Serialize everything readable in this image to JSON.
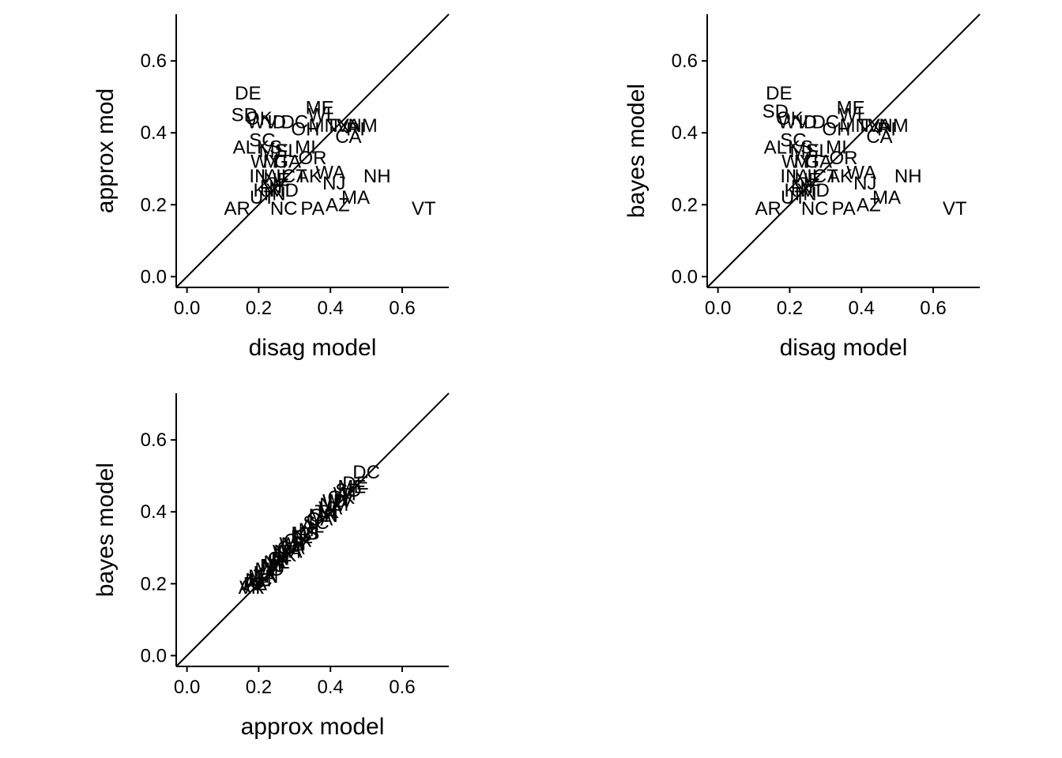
{
  "chart_data": [
    {
      "type": "scatter",
      "xlabel": "disag model",
      "ylabel": "approx mod",
      "xlim": [
        -0.03,
        0.73
      ],
      "ylim": [
        -0.03,
        0.73
      ],
      "xticks": [
        "0.0",
        "0.2",
        "0.4",
        "0.6"
      ],
      "yticks": [
        "0.0",
        "0.2",
        "0.4",
        "0.6"
      ],
      "reference_line": "y = x",
      "points": [
        {
          "label": "DE",
          "x": 0.17,
          "y": 0.51
        },
        {
          "label": "SD",
          "x": 0.16,
          "y": 0.45
        },
        {
          "label": "OK",
          "x": 0.2,
          "y": 0.44
        },
        {
          "label": "WV",
          "x": 0.21,
          "y": 0.43
        },
        {
          "label": "ID",
          "x": 0.25,
          "y": 0.43
        },
        {
          "label": "DC",
          "x": 0.3,
          "y": 0.43
        },
        {
          "label": "ME",
          "x": 0.37,
          "y": 0.47
        },
        {
          "label": "WI",
          "x": 0.37,
          "y": 0.45
        },
        {
          "label": "OH",
          "x": 0.33,
          "y": 0.41
        },
        {
          "label": "MN",
          "x": 0.38,
          "y": 0.42
        },
        {
          "label": "TX",
          "x": 0.42,
          "y": 0.42
        },
        {
          "label": "VA",
          "x": 0.45,
          "y": 0.42
        },
        {
          "label": "NM",
          "x": 0.49,
          "y": 0.42
        },
        {
          "label": "RI",
          "x": 0.47,
          "y": 0.41
        },
        {
          "label": "CA",
          "x": 0.45,
          "y": 0.39
        },
        {
          "label": "AL",
          "x": 0.16,
          "y": 0.36
        },
        {
          "label": "SC",
          "x": 0.21,
          "y": 0.38
        },
        {
          "label": "KS",
          "x": 0.23,
          "y": 0.36
        },
        {
          "label": "MS",
          "x": 0.24,
          "y": 0.35
        },
        {
          "label": "FL",
          "x": 0.28,
          "y": 0.35
        },
        {
          "label": "MI",
          "x": 0.33,
          "y": 0.36
        },
        {
          "label": "WY",
          "x": 0.22,
          "y": 0.32
        },
        {
          "label": "MT",
          "x": 0.25,
          "y": 0.32
        },
        {
          "label": "GA",
          "x": 0.28,
          "y": 0.32
        },
        {
          "label": "OR",
          "x": 0.35,
          "y": 0.33
        },
        {
          "label": "WA",
          "x": 0.4,
          "y": 0.29
        },
        {
          "label": "NH",
          "x": 0.53,
          "y": 0.28
        },
        {
          "label": "NJ",
          "x": 0.41,
          "y": 0.26
        },
        {
          "label": "IN",
          "x": 0.2,
          "y": 0.28
        },
        {
          "label": "IA",
          "x": 0.23,
          "y": 0.28
        },
        {
          "label": "NE",
          "x": 0.25,
          "y": 0.27
        },
        {
          "label": "IL",
          "x": 0.27,
          "y": 0.28
        },
        {
          "label": "CT",
          "x": 0.3,
          "y": 0.28
        },
        {
          "label": "AK",
          "x": 0.34,
          "y": 0.28
        },
        {
          "label": "NY",
          "x": 0.24,
          "y": 0.25
        },
        {
          "label": "KY",
          "x": 0.22,
          "y": 0.24
        },
        {
          "label": "MD",
          "x": 0.27,
          "y": 0.24
        },
        {
          "label": "TN",
          "x": 0.24,
          "y": 0.23
        },
        {
          "label": "UT",
          "x": 0.21,
          "y": 0.22
        },
        {
          "label": "NC",
          "x": 0.27,
          "y": 0.19
        },
        {
          "label": "PA",
          "x": 0.35,
          "y": 0.19
        },
        {
          "label": "AZ",
          "x": 0.42,
          "y": 0.2
        },
        {
          "label": "MA",
          "x": 0.47,
          "y": 0.22
        },
        {
          "label": "AR",
          "x": 0.14,
          "y": 0.19
        },
        {
          "label": "VT",
          "x": 0.66,
          "y": 0.19
        }
      ]
    },
    {
      "type": "scatter",
      "xlabel": "disag model",
      "ylabel": "bayes model",
      "xlim": [
        -0.03,
        0.73
      ],
      "ylim": [
        -0.03,
        0.73
      ],
      "xticks": [
        "0.0",
        "0.2",
        "0.4",
        "0.6"
      ],
      "yticks": [
        "0.0",
        "0.2",
        "0.4",
        "0.6"
      ],
      "reference_line": "y = x",
      "points": [
        {
          "label": "DE",
          "x": 0.17,
          "y": 0.51
        },
        {
          "label": "SD",
          "x": 0.16,
          "y": 0.46
        },
        {
          "label": "OK",
          "x": 0.2,
          "y": 0.44
        },
        {
          "label": "WV",
          "x": 0.21,
          "y": 0.43
        },
        {
          "label": "ID",
          "x": 0.25,
          "y": 0.43
        },
        {
          "label": "DC",
          "x": 0.3,
          "y": 0.43
        },
        {
          "label": "ME",
          "x": 0.37,
          "y": 0.47
        },
        {
          "label": "WI",
          "x": 0.37,
          "y": 0.45
        },
        {
          "label": "OH",
          "x": 0.33,
          "y": 0.41
        },
        {
          "label": "MN",
          "x": 0.38,
          "y": 0.42
        },
        {
          "label": "TX",
          "x": 0.42,
          "y": 0.42
        },
        {
          "label": "VA",
          "x": 0.45,
          "y": 0.42
        },
        {
          "label": "NM",
          "x": 0.49,
          "y": 0.42
        },
        {
          "label": "RI",
          "x": 0.47,
          "y": 0.41
        },
        {
          "label": "CA",
          "x": 0.45,
          "y": 0.39
        },
        {
          "label": "AL",
          "x": 0.16,
          "y": 0.36
        },
        {
          "label": "SC",
          "x": 0.21,
          "y": 0.38
        },
        {
          "label": "KS",
          "x": 0.23,
          "y": 0.36
        },
        {
          "label": "MS",
          "x": 0.24,
          "y": 0.35
        },
        {
          "label": "FL",
          "x": 0.28,
          "y": 0.35
        },
        {
          "label": "MI",
          "x": 0.33,
          "y": 0.36
        },
        {
          "label": "WY",
          "x": 0.22,
          "y": 0.32
        },
        {
          "label": "MT",
          "x": 0.25,
          "y": 0.32
        },
        {
          "label": "GA",
          "x": 0.28,
          "y": 0.32
        },
        {
          "label": "OR",
          "x": 0.35,
          "y": 0.33
        },
        {
          "label": "WA",
          "x": 0.4,
          "y": 0.29
        },
        {
          "label": "NH",
          "x": 0.53,
          "y": 0.28
        },
        {
          "label": "NJ",
          "x": 0.41,
          "y": 0.26
        },
        {
          "label": "IN",
          "x": 0.2,
          "y": 0.28
        },
        {
          "label": "IA",
          "x": 0.23,
          "y": 0.28
        },
        {
          "label": "NE",
          "x": 0.25,
          "y": 0.27
        },
        {
          "label": "IL",
          "x": 0.27,
          "y": 0.28
        },
        {
          "label": "CT",
          "x": 0.3,
          "y": 0.28
        },
        {
          "label": "AK",
          "x": 0.34,
          "y": 0.28
        },
        {
          "label": "NY",
          "x": 0.24,
          "y": 0.25
        },
        {
          "label": "KY",
          "x": 0.22,
          "y": 0.24
        },
        {
          "label": "MD",
          "x": 0.27,
          "y": 0.24
        },
        {
          "label": "TN",
          "x": 0.24,
          "y": 0.23
        },
        {
          "label": "UT",
          "x": 0.21,
          "y": 0.22
        },
        {
          "label": "NC",
          "x": 0.27,
          "y": 0.19
        },
        {
          "label": "PA",
          "x": 0.35,
          "y": 0.19
        },
        {
          "label": "AZ",
          "x": 0.42,
          "y": 0.2
        },
        {
          "label": "MA",
          "x": 0.47,
          "y": 0.22
        },
        {
          "label": "AR",
          "x": 0.14,
          "y": 0.19
        },
        {
          "label": "VT",
          "x": 0.66,
          "y": 0.19
        }
      ]
    },
    {
      "type": "scatter",
      "xlabel": "approx model",
      "ylabel": "bayes model",
      "xlim": [
        -0.03,
        0.73
      ],
      "ylim": [
        -0.03,
        0.73
      ],
      "xticks": [
        "0.0",
        "0.2",
        "0.4",
        "0.6"
      ],
      "yticks": [
        "0.0",
        "0.2",
        "0.4",
        "0.6"
      ],
      "reference_line": "y = x",
      "points": [
        {
          "label": "DC",
          "x": 0.5,
          "y": 0.51
        },
        {
          "label": "DE",
          "x": 0.47,
          "y": 0.48
        },
        {
          "label": "ME",
          "x": 0.46,
          "y": 0.47
        },
        {
          "label": "SD",
          "x": 0.45,
          "y": 0.46
        },
        {
          "label": "WI",
          "x": 0.44,
          "y": 0.45
        },
        {
          "label": "OK",
          "x": 0.43,
          "y": 0.44
        },
        {
          "label": "WV",
          "x": 0.42,
          "y": 0.43
        },
        {
          "label": "ID",
          "x": 0.42,
          "y": 0.43
        },
        {
          "label": "NM",
          "x": 0.41,
          "y": 0.42
        },
        {
          "label": "VA",
          "x": 0.4,
          "y": 0.41
        },
        {
          "label": "TX",
          "x": 0.39,
          "y": 0.4
        },
        {
          "label": "RI",
          "x": 0.39,
          "y": 0.4
        },
        {
          "label": "MN",
          "x": 0.38,
          "y": 0.39
        },
        {
          "label": "OH",
          "x": 0.38,
          "y": 0.39
        },
        {
          "label": "CA",
          "x": 0.37,
          "y": 0.38
        },
        {
          "label": "SC",
          "x": 0.36,
          "y": 0.37
        },
        {
          "label": "AL",
          "x": 0.35,
          "y": 0.36
        },
        {
          "label": "MI",
          "x": 0.34,
          "y": 0.35
        },
        {
          "label": "KS",
          "x": 0.33,
          "y": 0.34
        },
        {
          "label": "MS",
          "x": 0.33,
          "y": 0.34
        },
        {
          "label": "FL",
          "x": 0.32,
          "y": 0.33
        },
        {
          "label": "OR",
          "x": 0.31,
          "y": 0.32
        },
        {
          "label": "MT",
          "x": 0.3,
          "y": 0.31
        },
        {
          "label": "WY",
          "x": 0.3,
          "y": 0.31
        },
        {
          "label": "GA",
          "x": 0.29,
          "y": 0.3
        },
        {
          "label": "WA",
          "x": 0.28,
          "y": 0.29
        },
        {
          "label": "NH",
          "x": 0.28,
          "y": 0.29
        },
        {
          "label": "AK",
          "x": 0.27,
          "y": 0.28
        },
        {
          "label": "IL",
          "x": 0.27,
          "y": 0.28
        },
        {
          "label": "CT",
          "x": 0.26,
          "y": 0.27
        },
        {
          "label": "IN",
          "x": 0.26,
          "y": 0.27
        },
        {
          "label": "IA",
          "x": 0.25,
          "y": 0.26
        },
        {
          "label": "NE",
          "x": 0.25,
          "y": 0.26
        },
        {
          "label": "NJ",
          "x": 0.24,
          "y": 0.25
        },
        {
          "label": "NY",
          "x": 0.24,
          "y": 0.25
        },
        {
          "label": "MD",
          "x": 0.23,
          "y": 0.24
        },
        {
          "label": "KY",
          "x": 0.22,
          "y": 0.23
        },
        {
          "label": "TN",
          "x": 0.22,
          "y": 0.22
        },
        {
          "label": "MA",
          "x": 0.21,
          "y": 0.22
        },
        {
          "label": "UT",
          "x": 0.21,
          "y": 0.21
        },
        {
          "label": "NC",
          "x": 0.2,
          "y": 0.21
        },
        {
          "label": "AZ",
          "x": 0.19,
          "y": 0.2
        },
        {
          "label": "PA",
          "x": 0.19,
          "y": 0.2
        },
        {
          "label": "VT",
          "x": 0.18,
          "y": 0.19
        },
        {
          "label": "AR",
          "x": 0.18,
          "y": 0.19
        }
      ]
    }
  ]
}
